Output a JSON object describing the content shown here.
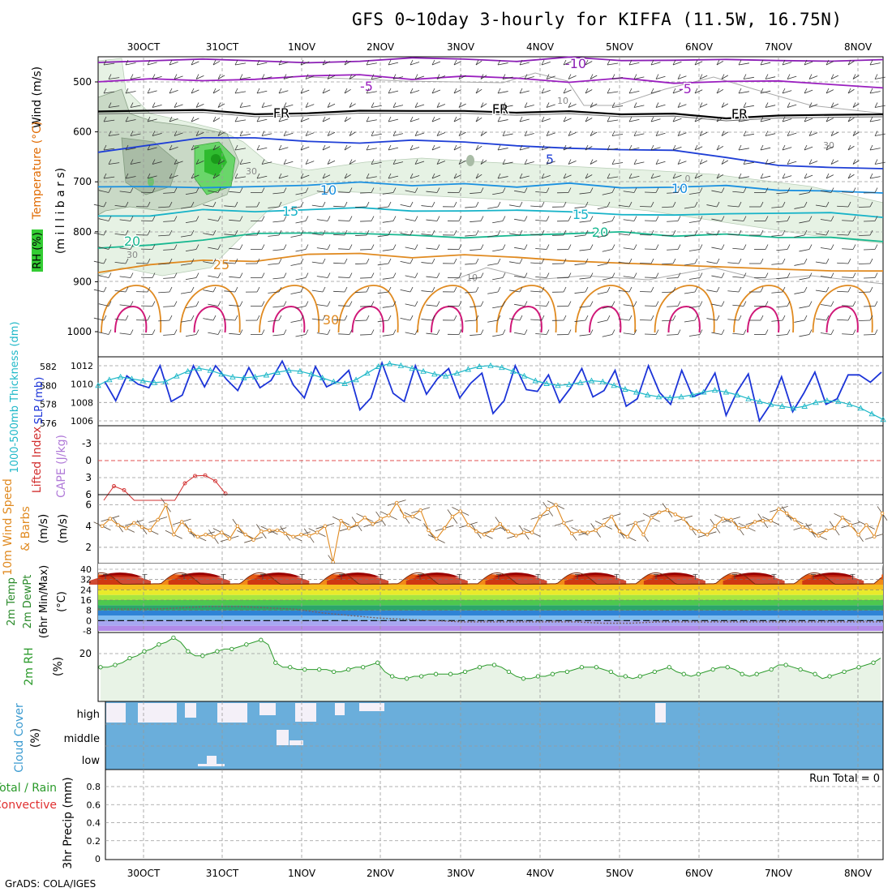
{
  "title": "GFS 0~10day 3-hourly for KIFFA (11.5W, 16.75N)",
  "credit": "GrADS: COLA/IGES",
  "dates": [
    "30OCT",
    "31OCT",
    "1NOV",
    "2NOV",
    "3NOV",
    "4NOV",
    "5NOV",
    "6NOV",
    "7NOV",
    "8NOV"
  ],
  "chart_data": [
    {
      "panel": "upper_air",
      "type": "heatmap",
      "ylabels": [
        "Temperature (°C)",
        "Wind (m/s)",
        "RH (%)",
        "(m i l l i b a r s)"
      ],
      "ylim": [
        1000,
        450
      ],
      "yticks": [
        500,
        600,
        700,
        800,
        900,
        1000
      ],
      "isotherms": [
        {
          "label": "-10",
          "color": "#8b1fb5",
          "values": [
            462,
            460,
            459,
            458,
            457,
            456,
            455,
            455,
            455,
            455,
            455,
            455,
            456,
            457,
            458,
            460
          ]
        },
        {
          "label": "-5",
          "color": "#9a1fbf",
          "values": [
            497,
            494,
            493,
            492,
            491,
            490,
            491,
            492,
            494,
            496,
            497,
            498,
            500,
            502,
            505,
            508
          ]
        },
        {
          "label": "FR",
          "color": "#000000",
          "values": [
            555,
            557,
            560,
            560,
            558,
            557,
            558,
            559,
            560,
            561,
            562,
            565,
            570,
            572,
            570,
            568
          ]
        },
        {
          "label": "5",
          "color": "#1f3fd6",
          "values": [
            645,
            630,
            615,
            612,
            615,
            618,
            620,
            622,
            625,
            628,
            633,
            640,
            655,
            672,
            676,
            672
          ]
        },
        {
          "label": "10",
          "color": "#1a90e0",
          "values": [
            710,
            708,
            707,
            705,
            703,
            704,
            705,
            706,
            706,
            707,
            708,
            710,
            712,
            714,
            716,
            720
          ]
        },
        {
          "label": "15",
          "color": "#17b3c8",
          "values": [
            770,
            765,
            760,
            755,
            752,
            752,
            754,
            757,
            760,
            762,
            763,
            762,
            760,
            762,
            765,
            770
          ]
        },
        {
          "label": "20",
          "color": "#18b890",
          "values": [
            830,
            822,
            815,
            808,
            805,
            805,
            806,
            808,
            808,
            806,
            805,
            805,
            805,
            807,
            810,
            815
          ]
        },
        {
          "label": "25",
          "color": "#e08a20",
          "values": [
            880,
            870,
            860,
            855,
            850,
            848,
            848,
            850,
            852,
            855,
            858,
            862,
            866,
            870,
            875,
            880
          ]
        }
      ],
      "labels_on_chart": [
        "-10",
        "-5",
        "FR",
        "5",
        "10",
        "15",
        "20",
        "25",
        "30",
        "10",
        "30",
        "0"
      ]
    },
    {
      "panel": "thickness_slp",
      "type": "line",
      "ylabels": [
        "1000-500mb Thickness (dm)",
        "SLP (mb)"
      ],
      "left_ticks": [
        "576",
        "578",
        "580",
        "582"
      ],
      "right_ticks": [
        "1006",
        "1008",
        "1010",
        "1012"
      ],
      "series": [
        {
          "name": "SLP (mb)",
          "color": "#1c34d8",
          "ylim": [
            1005,
            1013
          ],
          "values": [
            1010.3,
            1008.2,
            1010.9,
            1010.0,
            1009.6,
            1012.0,
            1008.1,
            1008.8,
            1012.0,
            1009.7,
            1012.0,
            1010.5,
            1009.3,
            1011.8,
            1009.6,
            1010.4,
            1012.5,
            1009.9,
            1008.5,
            1011.9,
            1009.7,
            1010.3,
            1011.5,
            1007.2,
            1008.5,
            1012.3,
            1009.0,
            1008.1,
            1012.0,
            1008.9,
            1010.6,
            1011.7,
            1008.5,
            1010.1,
            1011.2,
            1006.8,
            1008.2,
            1012.0,
            1009.4,
            1009.2,
            1011.0,
            1008.0,
            1009.6,
            1011.7,
            1008.6,
            1009.3,
            1011.5,
            1007.6,
            1008.4,
            1012.0,
            1009.1,
            1007.8,
            1011.5,
            1008.6,
            1009.1,
            1011.2,
            1006.6,
            1009.2,
            1011.1,
            1006.0,
            1007.8,
            1010.8,
            1007.0,
            1009.0,
            1011.3,
            1007.8,
            1008.4,
            1011.0,
            1011.0,
            1010.2,
            1011.3
          ]
        },
        {
          "name": "Thickness (dm)",
          "color": "#1fb8c8",
          "ylim": [
            576,
            583
          ],
          "values": [
            580.0,
            580.6,
            580.9,
            580.7,
            580.5,
            580.3,
            580.4,
            581.0,
            581.5,
            581.8,
            581.6,
            581.2,
            580.9,
            580.8,
            580.9,
            581.1,
            581.4,
            581.6,
            581.5,
            581.2,
            580.8,
            580.4,
            580.2,
            580.6,
            581.3,
            582.0,
            582.3,
            582.1,
            581.8,
            581.5,
            581.2,
            581.0,
            581.3,
            581.7,
            582.0,
            582.1,
            581.9,
            581.5,
            581.0,
            580.5,
            580.2,
            580.0,
            580.1,
            580.3,
            580.5,
            580.4,
            580.0,
            579.6,
            579.3,
            579.0,
            578.8,
            578.7,
            578.8,
            579.0,
            579.3,
            579.5,
            579.3,
            579.0,
            578.6,
            578.3,
            578.0,
            577.8,
            577.6,
            577.8,
            578.2,
            578.4,
            578.3,
            578.0,
            577.6,
            577.0,
            576.4
          ]
        }
      ]
    },
    {
      "panel": "lifted_index_cape",
      "type": "line",
      "ylabels": [
        "Lifted Index",
        "CAPE (J/kg)"
      ],
      "yticks": [
        "-3",
        "0",
        "3",
        "6"
      ],
      "ylim": [
        6,
        -6
      ],
      "series": [
        {
          "name": "Lifted Index",
          "color": "#d23030",
          "x": [
            0,
            1,
            2,
            3,
            4,
            5,
            6,
            7,
            8,
            9,
            10,
            11,
            12
          ],
          "values": [
            7,
            4.5,
            5.2,
            7,
            7,
            7,
            7,
            7,
            4.0,
            2.7,
            2.6,
            3.6,
            5.8
          ]
        }
      ]
    },
    {
      "panel": "wind10m",
      "type": "line",
      "ylabels": [
        "10m Wind Speed",
        "& Barbs",
        "(m/s)"
      ],
      "yticks": [
        "2",
        "4",
        "6"
      ],
      "ylim": [
        1,
        6.8
      ],
      "series": [
        {
          "name": "Speed",
          "color": "#e08a20",
          "values": [
            4.0,
            4.7,
            4.1,
            3.8,
            4.3,
            3.9,
            3.6,
            4.6,
            6.0,
            3.2,
            4.4,
            3.6,
            3.0,
            3.2,
            3.0,
            3.4,
            2.8,
            4.0,
            3.2,
            2.7,
            3.5,
            3.6,
            3.6,
            3.3,
            3.0,
            3.2,
            3.1,
            3.4,
            4.0,
            0.6,
            4.5,
            3.8,
            4.2,
            4.8,
            4.2,
            4.7,
            5.0,
            6.2,
            4.9,
            4.9,
            5.5,
            3.6,
            2.8,
            3.8,
            4.9,
            5.4,
            4.1,
            3.5,
            3.2,
            3.6,
            4.2,
            3.5,
            3.1,
            3.4,
            3.4,
            4.9,
            5.6,
            6.0,
            4.3,
            3.3,
            3.5,
            3.4,
            3.6,
            4.1,
            4.9,
            3.5,
            3.0,
            4.3,
            3.2,
            4.8,
            5.3,
            5.5,
            5.1,
            4.7,
            3.8,
            3.5,
            3.2,
            4.0,
            4.7,
            4.6,
            3.8,
            3.9,
            4.4,
            4.5,
            4.5,
            5.6,
            5.2,
            4.6,
            3.9,
            3.6,
            3.1,
            3.6,
            3.8,
            4.8,
            4.1,
            3.2,
            4.1,
            3.0,
            5.2
          ]
        }
      ]
    },
    {
      "panel": "temp2m",
      "type": "area",
      "ylabels": [
        "2m Temp",
        "2m DewPt",
        "(6hr Min/Max)",
        "(°C)"
      ],
      "yticks": [
        "40",
        "32",
        "24",
        "16",
        "8",
        "0",
        "-8"
      ],
      "ylim": [
        -8,
        40
      ],
      "series": [
        {
          "name": "2m Temp",
          "color": "#b00000",
          "daily_min": 27,
          "daily_max": 39
        },
        {
          "name": "2m DewPt",
          "color": "#7a6060",
          "values": [
            9,
            9,
            9,
            10,
            11,
            11,
            10,
            9,
            6,
            4,
            2,
            1,
            0,
            -1,
            -1,
            -1,
            -1,
            -1,
            -2,
            -2,
            -1,
            -1,
            -1,
            -1,
            -1,
            -1,
            -1,
            -1,
            -1
          ]
        }
      ]
    },
    {
      "panel": "rh2m",
      "type": "area",
      "ylabels": [
        "2m RH",
        "(%)"
      ],
      "yticks": [
        "20"
      ],
      "ylim": [
        0,
        32
      ],
      "series": [
        {
          "name": "2m RH",
          "color": "#2a9a2a",
          "values": [
            14,
            14,
            15,
            16,
            18,
            19,
            21,
            22,
            24,
            25,
            27,
            25,
            21,
            19,
            19,
            20,
            21,
            22,
            22,
            23,
            24,
            25,
            26,
            24,
            16,
            14,
            14,
            13,
            13,
            13,
            13,
            13,
            12,
            12,
            13,
            14,
            14,
            15,
            16,
            12,
            10,
            9,
            9,
            10,
            10,
            11,
            11,
            11,
            11,
            11,
            12,
            13,
            14,
            15,
            15,
            14,
            12,
            10,
            9,
            9,
            10,
            10,
            11,
            12,
            12,
            13,
            14,
            14,
            14,
            13,
            12,
            10,
            10,
            9,
            10,
            11,
            12,
            13,
            14,
            12,
            11,
            10,
            11,
            12,
            13,
            14,
            14,
            13,
            11,
            10,
            11,
            12,
            13,
            15,
            15,
            14,
            13,
            12,
            11,
            9,
            10,
            11,
            12,
            13,
            14,
            15,
            16,
            18
          ]
        }
      ]
    },
    {
      "panel": "cloud_cover",
      "type": "heatmap",
      "ylabels": [
        "Cloud Cover",
        "(%)"
      ],
      "rows": [
        "high",
        "middle",
        "low"
      ]
    },
    {
      "panel": "precip",
      "type": "bar",
      "ylabels": [
        "Total / Rain",
        "Convective",
        "3hr Precip (mm)"
      ],
      "yticks": [
        "0",
        "0.2",
        "0.4",
        "0.6",
        "0.8"
      ],
      "ylim": [
        0,
        0.95
      ],
      "run_total": "Run Total = 0",
      "values": []
    }
  ]
}
